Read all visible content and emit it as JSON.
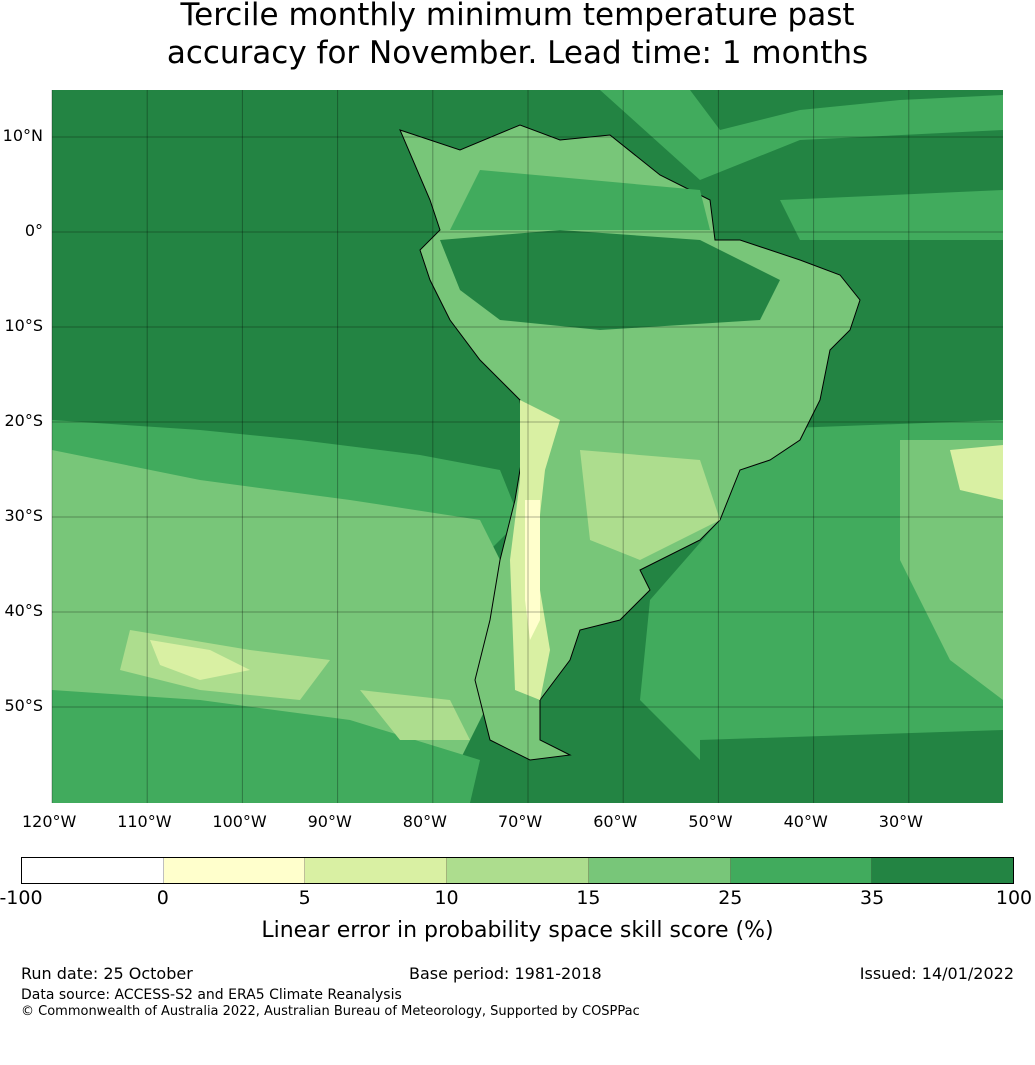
{
  "title": "Tercile monthly minimum temperature past accuracy for November. Lead time: 1 months",
  "title_lines": [
    "Tercile monthly minimum temperature past",
    "accuracy for November. Lead time: 1 months"
  ],
  "lat_labels": [
    "10°N",
    "0°",
    "10°S",
    "20°S",
    "30°S",
    "40°S",
    "50°S"
  ],
  "lon_labels": [
    "120°W",
    "110°W",
    "100°W",
    "90°W",
    "80°W",
    "70°W",
    "60°W",
    "50°W",
    "40°W",
    "30°W"
  ],
  "colorbar": {
    "colors": [
      "#ffffff",
      "#ffffcc",
      "#d9f0a3",
      "#addd8e",
      "#78c679",
      "#41ab5d",
      "#238443"
    ],
    "ticks": [
      "-100",
      "0",
      "5",
      "10",
      "15",
      "25",
      "35",
      "100"
    ],
    "label": "Linear error in probability space skill score (%)"
  },
  "footer": {
    "run_date": "Run date: 25 October",
    "base_period": "Base period: 1981-2018",
    "issued": "Issued: 14/01/2022",
    "data_source": "Data source: ACCESS-S2 and ERA5 Climate Reanalysis",
    "copyright": "© Commonwealth of Australia 2022, Australian Bureau of Meteorology, Supported by COSPPac"
  }
}
